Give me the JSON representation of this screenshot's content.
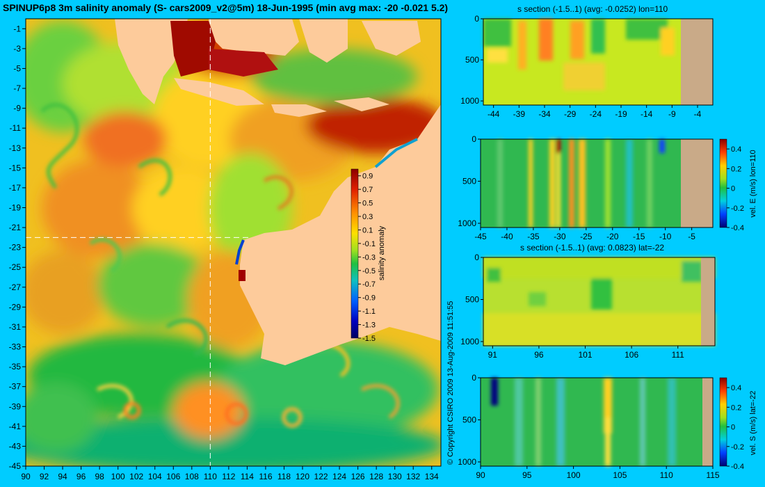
{
  "header": {
    "title": "SPINUP6p8 3m salinity anomaly (S- cars2009_v2@5m) 18-Jun-1995 (min avg max: -20 -0.021 5.2)"
  },
  "footer": {
    "copyright": "© Copyright CSIRO 2009  13-Aug-2009 11:51:55"
  },
  "colors": {
    "background": "#00ccff",
    "land": "#fdcb9b",
    "section_land": "#c9aa88",
    "crosshair": "#ffffff"
  },
  "chart_data": [
    {
      "type": "heatmap",
      "id": "map",
      "title": "SPINUP6p8 3m salinity anomaly (S- cars2009_v2@5m) 18-Jun-1995 (min avg max: -20 -0.021 5.2)",
      "xlim": [
        90,
        135
      ],
      "ylim": [
        -45,
        0
      ],
      "x_ticks": [
        "90",
        "92",
        "94",
        "96",
        "98",
        "100",
        "102",
        "104",
        "106",
        "108",
        "110",
        "112",
        "114",
        "116",
        "118",
        "120",
        "122",
        "124",
        "126",
        "128",
        "130",
        "132",
        "134"
      ],
      "y_ticks": [
        "-1",
        "-3",
        "-5",
        "-7",
        "-9",
        "-11",
        "-13",
        "-15",
        "-17",
        "-19",
        "-21",
        "-23",
        "-25",
        "-27",
        "-29",
        "-31",
        "-33",
        "-35",
        "-37",
        "-39",
        "-41",
        "-43",
        "-45"
      ],
      "crosshair": {
        "lon": 110,
        "lat": -22
      },
      "colorbar": {
        "label": "salinity anomaly",
        "range": [
          -1.5,
          1.0
        ],
        "ticks": [
          "0.9",
          "0.7",
          "0.5",
          "0.3",
          "0.1",
          "-0.1",
          "-0.3",
          "-0.5",
          "-0.7",
          "-0.9",
          "-1.1",
          "-1.3",
          "-1.5"
        ]
      }
    },
    {
      "type": "heatmap",
      "id": "s-section-lon",
      "title": "s section (-1.5..1) (avg: -0.0252) lon=110",
      "xlim": [
        -46,
        -1
      ],
      "x_ticks": [
        "-44",
        "-39",
        "-34",
        "-29",
        "-24",
        "-19",
        "-14",
        "-9",
        "-4"
      ],
      "y_ticks": [
        "0",
        "500",
        "1000"
      ],
      "ylim": [
        0,
        1050
      ],
      "land_from": -8.5
    },
    {
      "type": "heatmap",
      "id": "u-section-lon",
      "title": "",
      "xlim": [
        -45,
        -1
      ],
      "x_ticks": [
        "-45",
        "-40",
        "-35",
        "-30",
        "-25",
        "-20",
        "-15",
        "-10",
        "-5"
      ],
      "y_ticks": [
        "0",
        "500",
        "1000"
      ],
      "ylim": [
        0,
        1050
      ],
      "land_from": -8.5,
      "colorbar": {
        "label": "vel. E (m/s) lon=110",
        "range": [
          -0.4,
          0.5
        ],
        "ticks": [
          "0.4",
          "0.2",
          "0",
          "-0.2",
          "-0.4"
        ]
      }
    },
    {
      "type": "heatmap",
      "id": "s-section-lat",
      "title": "s section (-1.5..1) (avg: 0.0823) lat=-22",
      "xlim": [
        90,
        115
      ],
      "x_ticks": [
        "91",
        "96",
        "101",
        "106",
        "111"
      ],
      "y_ticks": [
        "0",
        "500",
        "1000"
      ],
      "ylim": [
        0,
        1050
      ],
      "land_from": 114
    },
    {
      "type": "heatmap",
      "id": "v-section-lat",
      "title": "",
      "xlim": [
        90,
        115
      ],
      "x_ticks": [
        "90",
        "95",
        "100",
        "105",
        "110",
        "115"
      ],
      "y_ticks": [
        "0",
        "500",
        "1000"
      ],
      "ylim": [
        0,
        1050
      ],
      "land_from": 114,
      "colorbar": {
        "label": "vel. S (m/s) lat=-22",
        "range": [
          -0.4,
          0.5
        ],
        "ticks": [
          "0.4",
          "0.2",
          "0",
          "-0.2",
          "-0.4"
        ]
      }
    }
  ]
}
